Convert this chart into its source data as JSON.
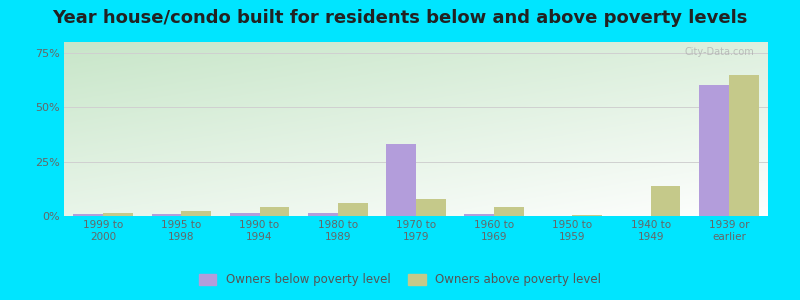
{
  "title": "Year house/condo built for residents below and above poverty levels",
  "categories": [
    "1999 to\n2000",
    "1995 to\n1998",
    "1990 to\n1994",
    "1980 to\n1989",
    "1970 to\n1979",
    "1960 to\n1969",
    "1950 to\n1959",
    "1940 to\n1949",
    "1939 or\nearlier"
  ],
  "below_poverty": [
    1.0,
    1.0,
    1.5,
    1.5,
    33.0,
    1.0,
    0.0,
    0.0,
    60.0
  ],
  "above_poverty": [
    1.5,
    2.5,
    4.0,
    6.0,
    8.0,
    4.0,
    0.5,
    14.0,
    65.0
  ],
  "below_color": "#b39ddb",
  "above_color": "#c5c98a",
  "ylim": [
    0,
    80
  ],
  "yticks": [
    0,
    25,
    50,
    75
  ],
  "ytick_labels": [
    "0%",
    "25%",
    "50%",
    "75%"
  ],
  "outer_background": "#00e5ff",
  "title_fontsize": 13,
  "legend_below_label": "Owners below poverty level",
  "legend_above_label": "Owners above poverty level",
  "bar_width": 0.38,
  "grid_color": "#d0d0d0",
  "gradient_colors": [
    "#c8e6c9",
    "#f1f8e9",
    "#ffffff"
  ],
  "watermark": "City-Data.com"
}
